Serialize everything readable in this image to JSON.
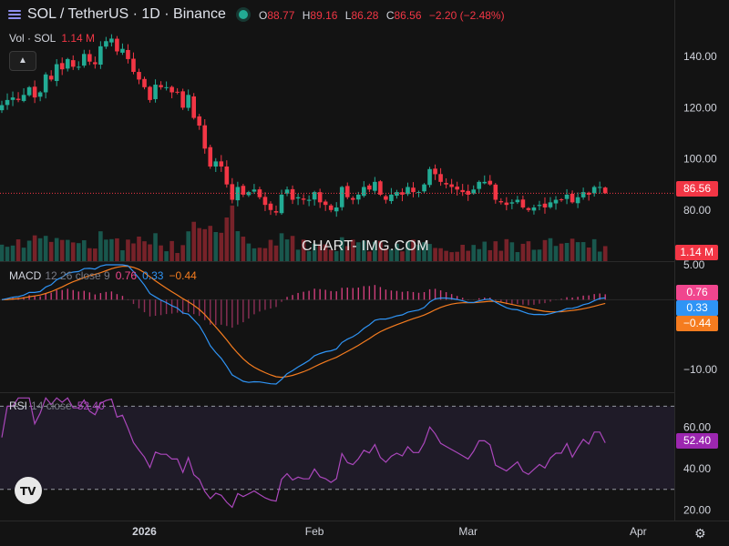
{
  "header": {
    "symbol": "SOL / TetherUS · 1D · Binance",
    "open_label": "O",
    "open": "88.77",
    "high_label": "H",
    "high": "89.16",
    "low_label": "L",
    "low": "86.28",
    "close_label": "C",
    "close": "86.56",
    "change": "−2.20 (−2.48%)"
  },
  "volume_legend": {
    "label": "Vol · SOL",
    "value": "1.14 M"
  },
  "macd_legend": {
    "label": "MACD",
    "params": "12 26 close 9",
    "hist": "0.76",
    "macd": "0.33",
    "signal": "−0.44"
  },
  "rsi_legend": {
    "label": "RSI",
    "params": "14 close",
    "value": "52.40"
  },
  "watermark": "CHART- IMG.COM",
  "badges": {
    "price": "86.56",
    "volume": "1.14 M",
    "hist": "0.76",
    "macd": "0.33",
    "signal": "−0.44",
    "rsi": "52.40"
  },
  "icons": {
    "menu": "menu-icon",
    "collapse": "chevron-up-icon",
    "logo": "tradingview-logo",
    "settings": "gear-icon"
  },
  "logo_text": "TV",
  "colors": {
    "up": "#22ab94",
    "down": "#f23645",
    "macd": "#2f94f5",
    "signal": "#f57c1f",
    "rsi": "#ab47bc",
    "hist": "#f0468e"
  },
  "chart_data": [
    {
      "type": "candlestick",
      "title": "SOL / TetherUS · 1D · Binance",
      "ylim": [
        60,
        150
      ],
      "y_ticks": [
        80.0,
        100.0,
        120.0,
        140.0
      ],
      "y_tick_labels": [
        "80.00",
        "100.00",
        "120.00",
        "140.00"
      ],
      "x_ticks": [
        {
          "date": "2026-01-01",
          "label": "2026"
        },
        {
          "date": "2026-02-01",
          "label": "Feb"
        },
        {
          "date": "2026-03-01",
          "label": "Mar"
        },
        {
          "date": "2026-04-01",
          "label": "Apr"
        }
      ],
      "last_price": 86.56,
      "x_start": "2025-12-06",
      "closes": [
        121,
        123,
        124,
        123,
        125,
        128,
        124,
        126,
        133,
        131,
        137,
        135,
        139,
        136,
        136,
        141,
        138,
        137,
        144,
        146,
        147,
        142,
        143,
        139,
        134,
        131,
        128,
        123,
        129,
        128,
        128,
        126,
        126,
        120,
        125,
        116,
        113,
        104,
        97,
        99,
        97,
        90,
        84,
        89,
        86,
        87,
        88,
        85,
        82,
        80,
        79,
        86,
        88,
        84,
        85,
        84,
        84,
        87,
        83,
        82,
        80,
        81,
        89,
        85,
        84,
        86,
        89,
        88,
        91,
        86,
        84,
        86,
        87,
        86,
        89,
        87,
        87,
        90,
        96,
        94,
        91,
        90,
        89,
        88,
        87,
        86,
        88,
        91,
        91,
        90,
        84,
        83,
        82,
        83,
        84,
        81,
        80,
        81,
        82,
        81,
        83,
        84,
        84,
        86,
        83,
        85,
        87,
        86,
        89,
        89,
        87
      ]
    },
    {
      "type": "bar",
      "title": "Vol · SOL",
      "last_value": "1.14 M"
    },
    {
      "type": "line",
      "title": "MACD 12 26 close 9",
      "ylim": [
        -13,
        5
      ],
      "y_ticks": [
        5.0,
        -10.0
      ],
      "y_tick_labels": [
        "5.00",
        "−10.00"
      ],
      "series": [
        {
          "name": "MACD",
          "last": 0.33
        },
        {
          "name": "Signal",
          "last": -0.44
        },
        {
          "name": "Histogram",
          "last": 0.76
        }
      ]
    },
    {
      "type": "line",
      "title": "RSI 14 close",
      "ylim": [
        15,
        75
      ],
      "y_ticks": [
        20.0,
        40.0,
        60.0
      ],
      "y_tick_labels": [
        "20.00",
        "40.00",
        "60.00"
      ],
      "bands": [
        30,
        70
      ],
      "series": [
        {
          "name": "RSI",
          "last": 52.4
        }
      ]
    }
  ]
}
